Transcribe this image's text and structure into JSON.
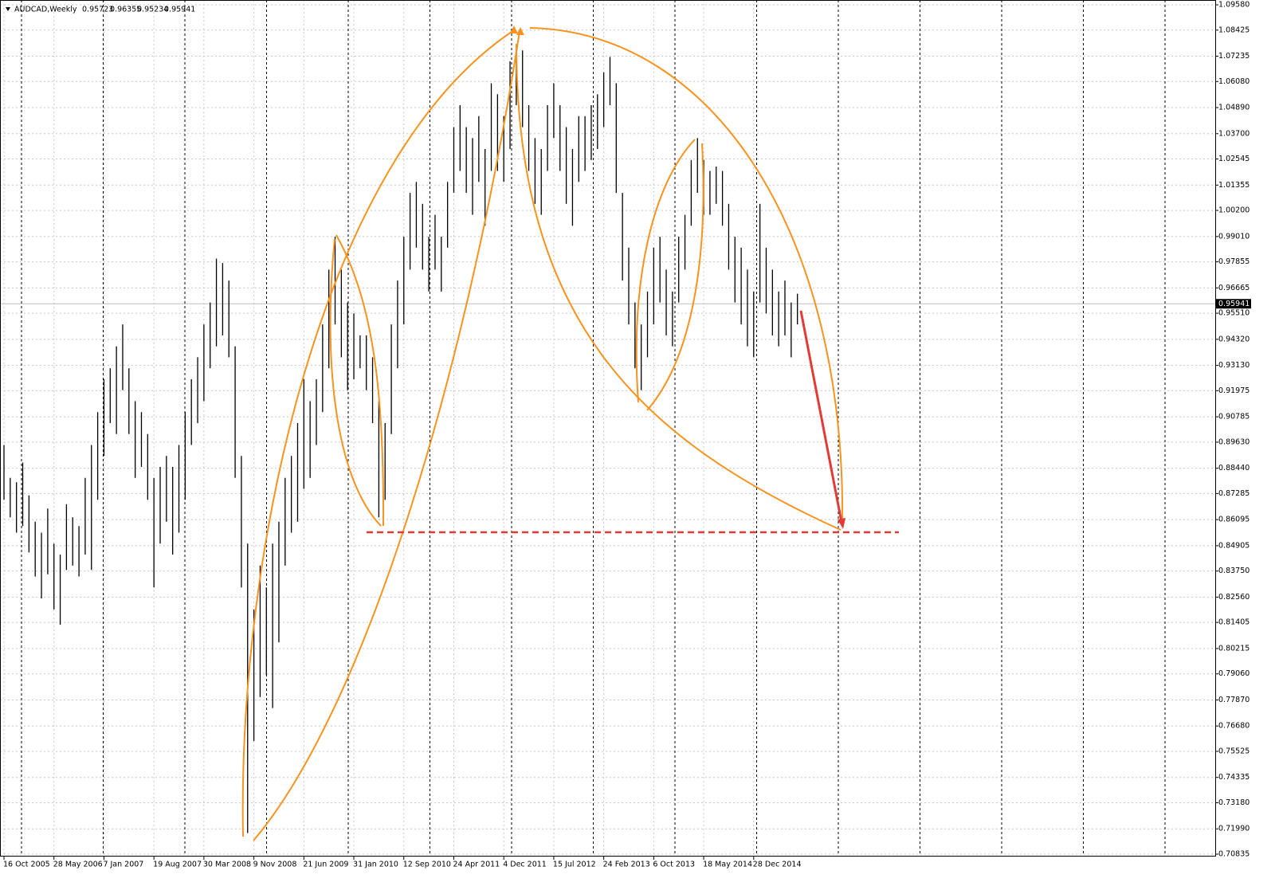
{
  "chart_data": {
    "type": "hl_bar",
    "title": "AUDCAD,Weekly",
    "last_bar": {
      "open": 0.95723,
      "high": 0.96355,
      "low": 0.95234,
      "close": 0.95941
    },
    "color": "#000000",
    "ylim": [
      0.70835,
      1.0958
    ],
    "yticks": [
      {
        "value": 1.0958,
        "label": "1.09580"
      },
      1.08425,
      1.07235,
      {
        "value": 1.0608,
        "label": "1.06080"
      },
      {
        "value": 1.0489,
        "label": "1.04890"
      },
      {
        "value": 1.037,
        "label": "1.03700"
      },
      1.02545,
      1.01355,
      {
        "value": 1.002,
        "label": "1.00200"
      },
      {
        "value": 0.9901,
        "label": "0.99010"
      },
      0.97855,
      0.96665,
      {
        "value": 0.9551,
        "label": "0.95510"
      },
      {
        "value": 0.9432,
        "label": "0.94320"
      },
      {
        "value": 0.9313,
        "label": "0.93130"
      },
      0.91975,
      0.90785,
      {
        "value": 0.8963,
        "label": "0.89630"
      },
      {
        "value": 0.8844,
        "label": "0.88440"
      },
      0.87285,
      0.86095,
      0.84905,
      {
        "value": 0.8375,
        "label": "0.83750"
      },
      {
        "value": 0.8256,
        "label": "0.82560"
      },
      0.81405,
      0.80215,
      {
        "value": 0.7906,
        "label": "0.79060"
      },
      {
        "value": 0.7787,
        "label": "0.77870"
      },
      {
        "value": 0.7668,
        "label": "0.76680"
      },
      0.75525,
      0.74335,
      {
        "value": 0.7318,
        "label": "0.73180"
      },
      {
        "value": 0.7199,
        "label": "0.71990"
      },
      0.70835
    ],
    "categories": [
      "16 Oct 2005",
      null,
      null,
      null,
      null,
      null,
      null,
      null,
      "28 May 2006",
      null,
      null,
      null,
      null,
      null,
      null,
      null,
      "7 Jan 2007",
      null,
      null,
      null,
      null,
      null,
      null,
      null,
      "19 Aug 2007",
      null,
      null,
      null,
      null,
      null,
      null,
      null,
      "30 Mar 2008",
      null,
      null,
      null,
      null,
      null,
      null,
      null,
      "9 Nov 2008",
      null,
      null,
      null,
      null,
      null,
      null,
      null,
      "21 Jun 2009",
      null,
      null,
      null,
      null,
      null,
      null,
      null,
      "31 Jan 2010",
      null,
      null,
      null,
      null,
      null,
      null,
      null,
      "12 Sep 2010",
      null,
      null,
      null,
      null,
      null,
      null,
      null,
      "24 Apr 2011",
      null,
      null,
      null,
      null,
      null,
      null,
      null,
      "4 Dec 2011",
      null,
      null,
      null,
      null,
      null,
      null,
      null,
      "15 Jul 2012",
      null,
      null,
      null,
      null,
      null,
      null,
      null,
      "24 Feb 2013",
      null,
      null,
      null,
      null,
      null,
      null,
      null,
      "6 Oct 2013",
      null,
      null,
      null,
      null,
      null,
      null,
      null,
      "18 May 2014",
      null,
      null,
      null,
      null,
      null,
      null,
      null,
      "28 Dec 2014",
      null,
      null,
      null,
      null,
      null,
      null,
      null
    ],
    "low": [
      0.87,
      0.862,
      0.855,
      0.858,
      0.846,
      0.835,
      0.825,
      0.836,
      0.82,
      0.813,
      0.838,
      0.84,
      0.835,
      0.845,
      0.838,
      0.87,
      0.89,
      0.905,
      0.9,
      0.92,
      0.9,
      0.88,
      0.885,
      0.87,
      0.83,
      0.85,
      0.86,
      0.845,
      0.855,
      0.87,
      0.895,
      0.905,
      0.915,
      0.93,
      0.94,
      0.945,
      0.935,
      0.88,
      0.83,
      0.718,
      0.76,
      0.78,
      0.79,
      0.775,
      0.805,
      0.84,
      0.855,
      0.86,
      0.875,
      0.88,
      0.895,
      0.91,
      0.93,
      0.95,
      0.935,
      0.92,
      0.925,
      0.93,
      0.92,
      0.905,
      0.862,
      0.87,
      0.9,
      0.93,
      0.95,
      0.975,
      0.985,
      0.975,
      0.965,
      0.975,
      0.965,
      0.985,
      1.01,
      1.02,
      1.01,
      1.0,
      1.015,
      0.995,
      1.02,
      1.02,
      1.015,
      1.03,
      1.05,
      1.04,
      1.02,
      1.005,
      1.0,
      1.02,
      1.035,
      1.02,
      1.005,
      0.995,
      1.015,
      1.02,
      1.025,
      1.03,
      1.04,
      1.05,
      1.01,
      0.97,
      0.95,
      0.93,
      0.92,
      0.935,
      0.95,
      0.96,
      0.945,
      0.94,
      0.96,
      0.975,
      0.995,
      1.01,
      1.0,
      1.0,
      1.005,
      0.995,
      0.975,
      0.96,
      0.95,
      0.94,
      0.935,
      0.96,
      0.955,
      0.945,
      0.94,
      0.945,
      0.935,
      0.95
    ],
    "high": [
      0.895,
      0.88,
      0.878,
      0.887,
      0.872,
      0.86,
      0.855,
      0.866,
      0.85,
      0.845,
      0.868,
      0.862,
      0.858,
      0.88,
      0.895,
      0.91,
      0.925,
      0.93,
      0.94,
      0.95,
      0.93,
      0.915,
      0.91,
      0.9,
      0.88,
      0.885,
      0.89,
      0.885,
      0.895,
      0.91,
      0.925,
      0.935,
      0.95,
      0.96,
      0.98,
      0.978,
      0.97,
      0.94,
      0.89,
      0.85,
      0.82,
      0.84,
      0.83,
      0.85,
      0.86,
      0.88,
      0.89,
      0.905,
      0.925,
      0.915,
      0.925,
      0.95,
      0.975,
      0.99,
      0.975,
      0.96,
      0.955,
      0.945,
      0.945,
      0.935,
      0.915,
      0.905,
      0.95,
      0.97,
      0.99,
      1.01,
      1.015,
      1.005,
      0.99,
      1.0,
      0.99,
      1.015,
      1.04,
      1.05,
      1.04,
      1.035,
      1.045,
      1.03,
      1.06,
      1.055,
      1.045,
      1.07,
      1.078,
      1.075,
      1.05,
      1.035,
      1.03,
      1.05,
      1.06,
      1.05,
      1.04,
      1.03,
      1.045,
      1.045,
      1.05,
      1.055,
      1.065,
      1.072,
      1.06,
      1.01,
      0.985,
      0.96,
      0.95,
      0.965,
      0.985,
      0.99,
      0.975,
      0.965,
      0.99,
      1.0,
      1.025,
      1.035,
      1.025,
      1.02,
      1.022,
      1.02,
      1.005,
      0.99,
      0.985,
      0.975,
      0.965,
      1.005,
      0.985,
      0.975,
      0.965,
      0.97,
      0.96,
      0.964
    ]
  }
}
